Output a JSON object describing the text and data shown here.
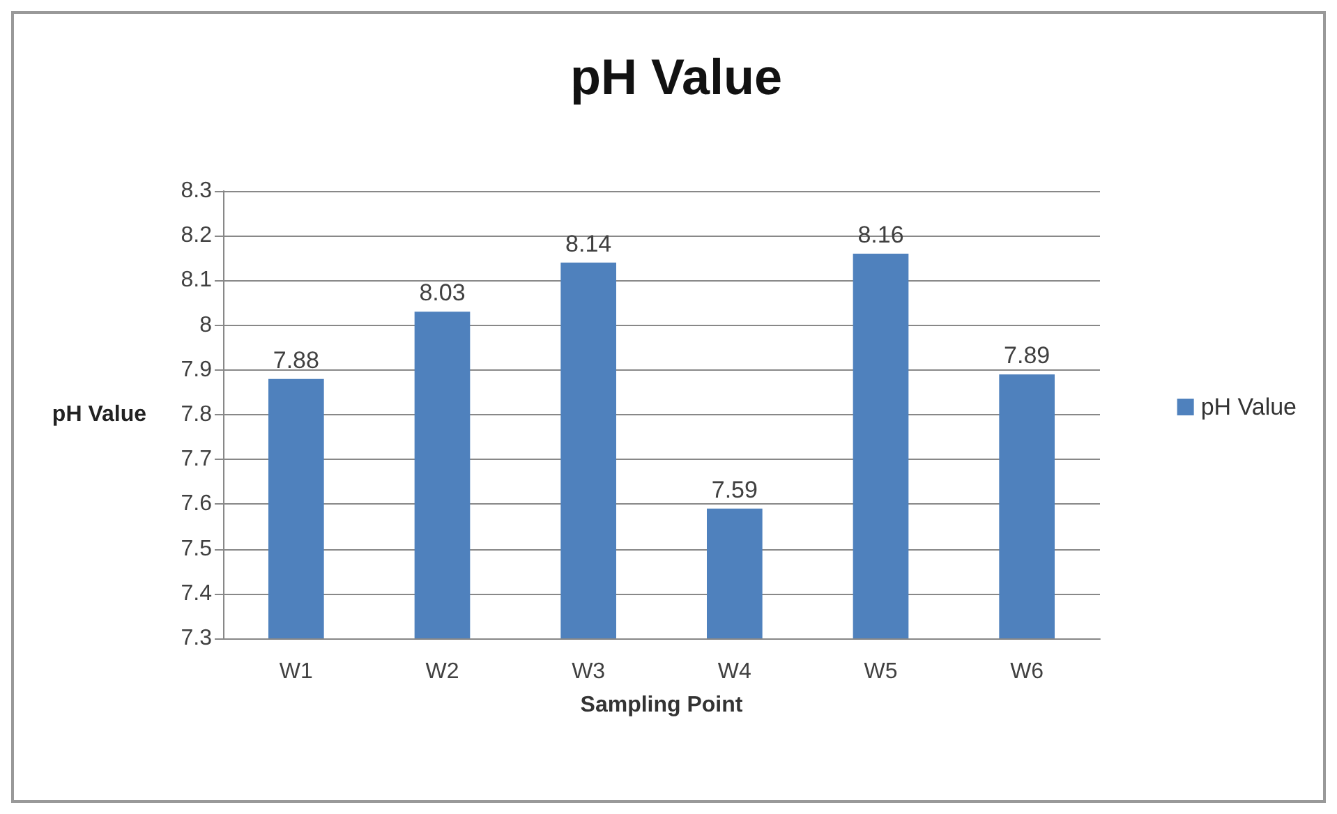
{
  "chart_data": {
    "type": "bar",
    "title": "pH Value",
    "xlabel": "Sampling Point",
    "ylabel": "pH Value",
    "categories": [
      "W1",
      "W2",
      "W3",
      "W4",
      "W5",
      "W6"
    ],
    "series": [
      {
        "name": "pH Value",
        "color": "#4f81bd",
        "values": [
          7.88,
          8.03,
          8.14,
          7.59,
          8.16,
          7.89
        ]
      }
    ],
    "ylim": [
      7.3,
      8.3
    ],
    "yticks": [
      7.3,
      7.4,
      7.5,
      7.6,
      7.7,
      7.8,
      7.9,
      8,
      8.1,
      8.2,
      8.3
    ],
    "grid": "y",
    "legend": "right",
    "data_labels": true
  }
}
